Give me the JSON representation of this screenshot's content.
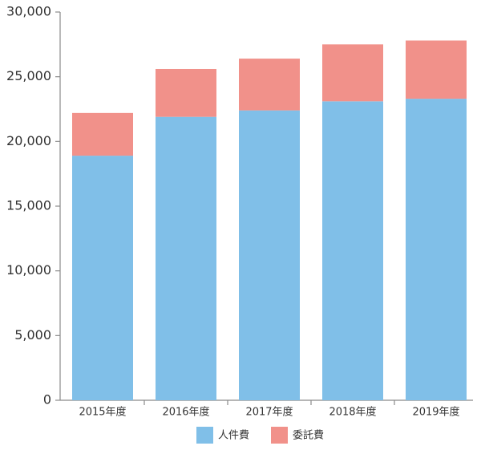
{
  "chart_data": {
    "type": "stacked-bar",
    "categories": [
      "2015年度",
      "2016年度",
      "2017年度",
      "2018年度",
      "2019年度"
    ],
    "series": [
      {
        "name": "人件費",
        "color": "#80bfe8",
        "values": [
          18900,
          21900,
          22400,
          23100,
          23300
        ]
      },
      {
        "name": "委託費",
        "color": "#f1918a",
        "values": [
          3300,
          3700,
          4000,
          4400,
          4500
        ]
      }
    ],
    "ylim": [
      0,
      30000
    ],
    "yticks": [
      0,
      {
        "value": 5000,
        "label": "5,000"
      },
      {
        "value": 10000,
        "label": "10,000"
      },
      {
        "value": 15000,
        "label": "15,000"
      },
      {
        "value": 20000,
        "label": "20,000"
      },
      {
        "value": 25000,
        "label": "25,000"
      },
      {
        "value": 30000,
        "label": "30,000"
      }
    ],
    "grid": false
  }
}
